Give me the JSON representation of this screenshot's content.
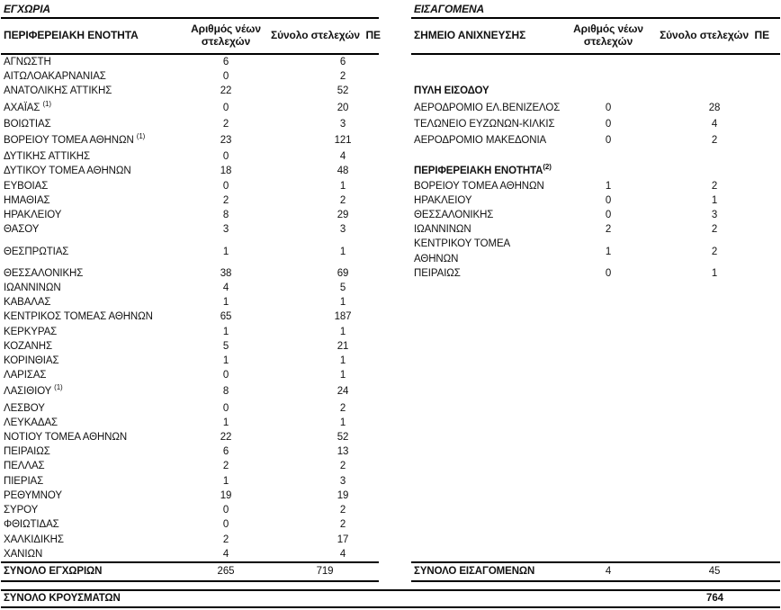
{
  "left_table": {
    "title": "ΕΓΧΩΡΙΑ",
    "headers": {
      "name": "ΠΕΡΙΦΕΡΕΙΑΚΗ ΕΝΟΤΗΤΑ",
      "new": "Αριθμός νέων στελεχών",
      "total": "Σύνολο στελεχών  ΠΕ"
    },
    "total_row": {
      "label": "ΣΥΝΟΛΟ ΕΓΧΩΡΙΩΝ",
      "new": "265",
      "total": "719"
    }
  },
  "right_table": {
    "title": "ΕΙΣΑΓΟΜΕΝΑ",
    "headers": {
      "name": "ΣΗΜΕΙΟ ΑΝΙΧΝΕΥΣΗΣ",
      "new": "Αριθμός νέων στελεχών",
      "total": "Σύνολο στελεχών  ΠΕ"
    },
    "total_row": {
      "label": "ΣΥΝΟΛΟ ΕΙΣΑΓΟΜΕΝΩΝ",
      "new": "4",
      "total": "45"
    }
  },
  "rows": [
    {
      "left": {
        "name": "ΑΓΝΩΣΤΗ",
        "new": "6",
        "total": "6"
      },
      "right": null
    },
    {
      "left": {
        "name": "ΑΙΤΩΛΟΑΚΑΡΝΑΝΙΑΣ",
        "new": "0",
        "total": "2"
      },
      "right": null
    },
    {
      "left": {
        "name": "ΑΝΑΤΟΛΙΚΗΣ ΑΤΤΙΚΗΣ",
        "new": "22",
        "total": "52"
      },
      "right": {
        "section": "ΠΥΛΗ ΕΙΣΟΔΟΥ"
      }
    },
    {
      "left": {
        "name": "ΑΧΑΪΑΣ",
        "sup": "(1)",
        "new": "0",
        "total": "20"
      },
      "right": {
        "name": "ΑΕΡΟΔΡΟΜΙΟ ΕΛ.ΒΕΝΙΖΕΛΟΣ",
        "new": "0",
        "total": "28"
      }
    },
    {
      "left": {
        "name": "ΒΟΙΩΤΙΑΣ",
        "new": "2",
        "total": "3"
      },
      "right": {
        "name": "ΤΕΛΩΝΕΙΟ ΕΥΖΩΝΩΝ-ΚΙΛΚΙΣ",
        "new": "0",
        "total": "4"
      }
    },
    {
      "left": {
        "name": "ΒΟΡΕΙΟΥ ΤΟΜΕΑ ΑΘΗΝΩΝ",
        "sup": "(1)",
        "new": "23",
        "total": "121"
      },
      "right": {
        "name": "ΑΕΡΟΔΡΟΜΙΟ ΜΑΚΕΔΟΝΙΑ",
        "new": "0",
        "total": "2"
      }
    },
    {
      "left": {
        "name": "ΔΥΤΙΚΗΣ ΑΤΤΙΚΗΣ",
        "new": "0",
        "total": "4"
      },
      "right": null
    },
    {
      "left": {
        "name": "ΔΥΤΙΚΟΥ ΤΟΜΕΑ ΑΘΗΝΩΝ",
        "new": "18",
        "total": "48"
      },
      "right": {
        "section": "ΠΕΡΙΦΕΡΕΙΑΚΗ ΕΝΟΤΗΤΑ",
        "section_sup": "(2)"
      }
    },
    {
      "left": {
        "name": "ΕΥΒΟΙΑΣ",
        "new": "0",
        "total": "1"
      },
      "right": {
        "name": "ΒΟΡΕΙΟΥ ΤΟΜΕΑ ΑΘΗΝΩΝ",
        "new": "1",
        "total": "2"
      }
    },
    {
      "left": {
        "name": "ΗΜΑΘΙΑΣ",
        "new": "2",
        "total": "2"
      },
      "right": {
        "name": "ΗΡΑΚΛΕΙΟΥ",
        "indent": true,
        "new": "0",
        "total": "1"
      }
    },
    {
      "left": {
        "name": "ΗΡΑΚΛΕΙΟΥ",
        "new": "8",
        "total": "29"
      },
      "right": {
        "name": "ΘΕΣΣΑΛΟΝΙΚΗΣ",
        "indent": true,
        "new": "0",
        "total": "3"
      }
    },
    {
      "left": {
        "name": "ΘΑΣΟΥ",
        "new": "3",
        "total": "3"
      },
      "right": {
        "name": "ΙΩΑΝΝΙΝΩΝ",
        "indent": true,
        "new": "2",
        "total": "2"
      }
    },
    {
      "left": {
        "name": "ΘΕΣΠΡΩΤΙΑΣ",
        "new": "1",
        "total": "1"
      },
      "right": {
        "name": "ΚΕΝΤΡΙΚΟΥ ΤΟΜΕΑ ΑΘΗΝΩΝ",
        "wrap": true,
        "new": "1",
        "total": "2"
      }
    },
    {
      "left": {
        "name": "ΘΕΣΣΑΛΟΝΙΚΗΣ",
        "new": "38",
        "total": "69"
      },
      "right": {
        "name": "ΠΕΙΡΑΙΩΣ",
        "indent": true,
        "new": "0",
        "total": "1"
      }
    },
    {
      "left": {
        "name": "ΙΩΑΝΝΙΝΩΝ",
        "new": "4",
        "total": "5"
      },
      "right": null
    },
    {
      "left": {
        "name": "ΚΑΒΑΛΑΣ",
        "new": "1",
        "total": "1"
      },
      "right": null
    },
    {
      "left": {
        "name": "ΚΕΝΤΡΙΚΟΣ ΤΟΜΕΑΣ ΑΘΗΝΩΝ",
        "new": "65",
        "total": "187"
      },
      "right": null
    },
    {
      "left": {
        "name": "ΚΕΡΚΥΡΑΣ",
        "new": "1",
        "total": "1"
      },
      "right": null
    },
    {
      "left": {
        "name": "ΚΟΖΑΝΗΣ",
        "new": "5",
        "total": "21"
      },
      "right": null
    },
    {
      "left": {
        "name": "ΚΟΡΙΝΘΙΑΣ",
        "new": "1",
        "total": "1"
      },
      "right": null
    },
    {
      "left": {
        "name": "ΛΑΡΙΣΑΣ",
        "new": "0",
        "total": "1"
      },
      "right": null
    },
    {
      "left": {
        "name": "ΛΑΣΙΘΙΟΥ",
        "sup": "(1)",
        "new": "8",
        "total": "24"
      },
      "right": null
    },
    {
      "left": {
        "name": "ΛΕΣΒΟΥ",
        "new": "0",
        "total": "2"
      },
      "right": null
    },
    {
      "left": {
        "name": "ΛΕΥΚΑΔΑΣ",
        "new": "1",
        "total": "1"
      },
      "right": null
    },
    {
      "left": {
        "name": "ΝΟΤΙΟΥ ΤΟΜΕΑ ΑΘΗΝΩΝ",
        "new": "22",
        "total": "52"
      },
      "right": null
    },
    {
      "left": {
        "name": "ΠΕΙΡΑΙΩΣ",
        "new": "6",
        "total": "13"
      },
      "right": null
    },
    {
      "left": {
        "name": "ΠΕΛΛΑΣ",
        "new": "2",
        "total": "2"
      },
      "right": null
    },
    {
      "left": {
        "name": "ΠΙΕΡΙΑΣ",
        "new": "1",
        "total": "3"
      },
      "right": null
    },
    {
      "left": {
        "name": "ΡΕΘΥΜΝΟΥ",
        "new": "19",
        "total": "19"
      },
      "right": null
    },
    {
      "left": {
        "name": "ΣΥΡΟΥ",
        "new": "0",
        "total": "2"
      },
      "right": null
    },
    {
      "left": {
        "name": "ΦΘΙΩΤΙΔΑΣ",
        "new": "0",
        "total": "2"
      },
      "right": null
    },
    {
      "left": {
        "name": "ΧΑΛΚΙΔΙΚΗΣ",
        "new": "2",
        "total": "17"
      },
      "right": null
    },
    {
      "left": {
        "name": "ΧΑΝΙΩΝ",
        "new": "4",
        "total": "4"
      },
      "right": null
    }
  ],
  "grand_total": {
    "label": "ΣΥΝΟΛΟ ΚΡΟΥΣΜΑΤΩΝ",
    "value": "764"
  },
  "colors": {
    "text": "#121212",
    "rule": "#000000",
    "background": "#ffffff"
  }
}
